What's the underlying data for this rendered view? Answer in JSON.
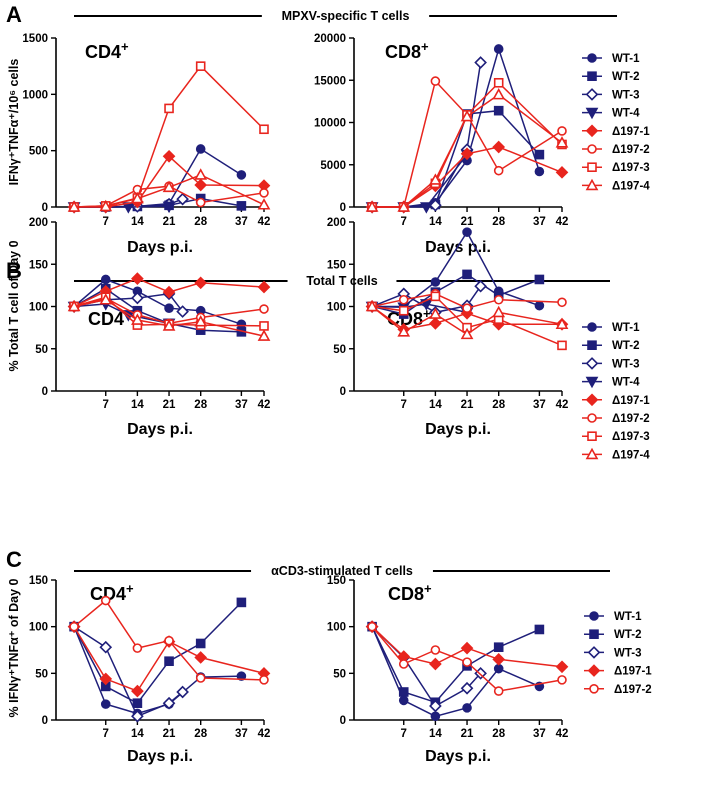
{
  "figure": {
    "panels": [
      {
        "letter": "A",
        "section_title": "MPXV-specific T cells",
        "ylabel": "IFNγ⁺TNFα⁺/10⁶ cells"
      },
      {
        "letter": "B",
        "section_title": "Total T cells",
        "ylabel": "% Total T cell of Day 0"
      },
      {
        "letter": "C",
        "section_title": "αCD3-stimulated T cells",
        "ylabel": "% IFNγ⁺TNFα⁺ of Day 0"
      }
    ]
  },
  "series_styles": [
    {
      "name": "WT-1",
      "color": "#1f1f7a",
      "marker": "circle",
      "filled": true
    },
    {
      "name": "WT-2",
      "color": "#1f1f7a",
      "marker": "square",
      "filled": true
    },
    {
      "name": "WT-3",
      "color": "#1f1f7a",
      "marker": "diamond",
      "filled": false
    },
    {
      "name": "WT-4",
      "color": "#1f1f7a",
      "marker": "triangle-down",
      "filled": true
    },
    {
      "name": "Δ197-1",
      "color": "#e8251e",
      "marker": "diamond",
      "filled": true
    },
    {
      "name": "Δ197-2",
      "color": "#e8251e",
      "marker": "circle",
      "filled": false
    },
    {
      "name": "Δ197-3",
      "color": "#e8251e",
      "marker": "square",
      "filled": false
    },
    {
      "name": "Δ197-4",
      "color": "#e8251e",
      "marker": "triangle-up",
      "filled": false
    }
  ],
  "chart_data": [
    {
      "type": "line",
      "panel": "A",
      "title": "CD4+",
      "xlabel": "Days p.i.",
      "ylabel": "IFNγ⁺TNFα⁺/10⁶ cells",
      "xlim": [
        -4,
        42
      ],
      "xticks": [
        7,
        14,
        21,
        28,
        37,
        42
      ],
      "ylim": [
        0,
        1500
      ],
      "yticks": [
        0,
        500,
        1000,
        1500
      ],
      "series": [
        {
          "name": "WT-1",
          "x": [
            0,
            7,
            14,
            21,
            28,
            37
          ],
          "y": [
            0,
            2,
            5,
            30,
            515,
            285
          ]
        },
        {
          "name": "WT-2",
          "x": [
            0,
            7,
            14,
            21,
            28,
            37
          ],
          "y": [
            0,
            0,
            5,
            15,
            75,
            10
          ]
        },
        {
          "name": "WT-3",
          "x": [
            0,
            7,
            14,
            21,
            24
          ],
          "y": [
            0,
            0,
            5,
            25,
            70
          ]
        },
        {
          "name": "WT-4",
          "x": [
            0,
            7,
            12,
            21
          ],
          "y": [
            0,
            0,
            0,
            5
          ]
        },
        {
          "name": "Δ197-1",
          "x": [
            0,
            7,
            14,
            21,
            28,
            42
          ],
          "y": [
            0,
            0,
            45,
            450,
            195,
            190
          ]
        },
        {
          "name": "Δ197-2",
          "x": [
            0,
            7,
            14,
            21,
            28,
            42
          ],
          "y": [
            0,
            10,
            155,
            185,
            40,
            125
          ]
        },
        {
          "name": "Δ197-3",
          "x": [
            0,
            7,
            14,
            21,
            28,
            42
          ],
          "y": [
            0,
            10,
            80,
            875,
            1250,
            690
          ]
        },
        {
          "name": "Δ197-4",
          "x": [
            0,
            7,
            14,
            21,
            28,
            42
          ],
          "y": [
            0,
            5,
            75,
            175,
            285,
            20
          ]
        }
      ]
    },
    {
      "type": "line",
      "panel": "A",
      "title": "CD8+",
      "xlabel": "Days p.i.",
      "ylabel": "",
      "xlim": [
        -4,
        42
      ],
      "xticks": [
        7,
        14,
        21,
        28,
        37,
        42
      ],
      "ylim": [
        0,
        20000
      ],
      "yticks": [
        0,
        5000,
        10000,
        15000,
        20000
      ],
      "series": [
        {
          "name": "WT-1",
          "x": [
            0,
            7,
            14,
            21,
            28,
            37
          ],
          "y": [
            0,
            0,
            500,
            5500,
            18700,
            4200
          ]
        },
        {
          "name": "WT-2",
          "x": [
            0,
            7,
            14,
            21,
            28,
            37
          ],
          "y": [
            0,
            0,
            300,
            11000,
            11400,
            6200
          ]
        },
        {
          "name": "WT-3",
          "x": [
            0,
            7,
            14,
            21,
            24
          ],
          "y": [
            0,
            0,
            200,
            6800,
            17100
          ]
        },
        {
          "name": "WT-4",
          "x": [
            0,
            7,
            12,
            21
          ],
          "y": [
            0,
            0,
            0,
            6200
          ]
        },
        {
          "name": "Δ197-1",
          "x": [
            0,
            7,
            14,
            21,
            28,
            42
          ],
          "y": [
            0,
            0,
            2500,
            6300,
            7100,
            4100
          ]
        },
        {
          "name": "Δ197-2",
          "x": [
            0,
            7,
            14,
            21,
            28,
            42
          ],
          "y": [
            0,
            0,
            14900,
            10900,
            4300,
            9000
          ]
        },
        {
          "name": "Δ197-3",
          "x": [
            0,
            7,
            14,
            21,
            28,
            42
          ],
          "y": [
            0,
            0,
            2800,
            10900,
            14700,
            7400
          ]
        },
        {
          "name": "Δ197-4",
          "x": [
            0,
            7,
            14,
            21,
            28,
            42
          ],
          "y": [
            0,
            0,
            3200,
            10700,
            13300,
            7600
          ]
        }
      ]
    },
    {
      "type": "line",
      "panel": "B",
      "title": "CD4+",
      "xlabel": "Days p.i.",
      "ylabel": "% Total T cell of Day 0",
      "xlim": [
        -4,
        42
      ],
      "xticks": [
        7,
        14,
        21,
        28,
        37,
        42
      ],
      "ylim": [
        0,
        200
      ],
      "yticks": [
        0,
        50,
        100,
        150,
        200
      ],
      "series": [
        {
          "name": "WT-1",
          "x": [
            0,
            7,
            14,
            21,
            28,
            37
          ],
          "y": [
            100,
            132,
            118,
            98,
            95,
            79
          ]
        },
        {
          "name": "WT-2",
          "x": [
            0,
            7,
            14,
            21,
            28,
            37
          ],
          "y": [
            100,
            121,
            95,
            80,
            72,
            70
          ]
        },
        {
          "name": "WT-3",
          "x": [
            0,
            7,
            14,
            21,
            24
          ],
          "y": [
            100,
            108,
            110,
            115,
            94
          ]
        },
        {
          "name": "WT-4",
          "x": [
            0,
            7,
            12,
            21
          ],
          "y": [
            100,
            103,
            90,
            80
          ]
        },
        {
          "name": "Δ197-1",
          "x": [
            0,
            7,
            14,
            21,
            28,
            42
          ],
          "y": [
            100,
            118,
            133,
            117,
            128,
            123
          ]
        },
        {
          "name": "Δ197-2",
          "x": [
            0,
            7,
            14,
            21,
            28,
            42
          ],
          "y": [
            100,
            110,
            90,
            80,
            87,
            97
          ]
        },
        {
          "name": "Δ197-3",
          "x": [
            0,
            7,
            14,
            21,
            28,
            42
          ],
          "y": [
            100,
            111,
            78,
            79,
            78,
            77
          ]
        },
        {
          "name": "Δ197-4",
          "x": [
            0,
            7,
            14,
            21,
            28,
            42
          ],
          "y": [
            100,
            108,
            84,
            77,
            82,
            65
          ]
        }
      ]
    },
    {
      "type": "line",
      "panel": "B",
      "title": "CD8+",
      "xlabel": "Days p.i.",
      "ylabel": "",
      "xlim": [
        -4,
        42
      ],
      "xticks": [
        7,
        14,
        21,
        28,
        37,
        42
      ],
      "ylim": [
        0,
        200
      ],
      "yticks": [
        0,
        50,
        100,
        150,
        200
      ],
      "series": [
        {
          "name": "WT-1",
          "x": [
            0,
            7,
            14,
            21,
            28,
            37
          ],
          "y": [
            100,
            100,
            129,
            188,
            118,
            101
          ]
        },
        {
          "name": "WT-2",
          "x": [
            0,
            7,
            14,
            21,
            28,
            37
          ],
          "y": [
            100,
            91,
            117,
            138,
            113,
            132
          ]
        },
        {
          "name": "WT-3",
          "x": [
            0,
            7,
            14,
            21,
            24
          ],
          "y": [
            100,
            115,
            93,
            101,
            124
          ]
        },
        {
          "name": "WT-4",
          "x": [
            0,
            7,
            12,
            21
          ],
          "y": [
            100,
            99,
            103,
            93
          ]
        },
        {
          "name": "Δ197-1",
          "x": [
            0,
            7,
            14,
            21,
            28,
            42
          ],
          "y": [
            100,
            73,
            80,
            92,
            79,
            79
          ]
        },
        {
          "name": "Δ197-2",
          "x": [
            0,
            7,
            14,
            21,
            28,
            42
          ],
          "y": [
            100,
            108,
            115,
            98,
            108,
            105
          ]
        },
        {
          "name": "Δ197-3",
          "x": [
            0,
            7,
            14,
            21,
            28,
            42
          ],
          "y": [
            100,
            95,
            112,
            75,
            85,
            54
          ]
        },
        {
          "name": "Δ197-4",
          "x": [
            0,
            7,
            14,
            21,
            28,
            42
          ],
          "y": [
            100,
            70,
            91,
            67,
            93,
            79
          ]
        }
      ]
    },
    {
      "type": "line",
      "panel": "C",
      "title": "CD4+",
      "xlabel": "Days p.i.",
      "ylabel": "% IFNγ⁺TNFα⁺ of Day 0",
      "xlim": [
        -4,
        42
      ],
      "xticks": [
        7,
        14,
        21,
        28,
        37,
        42
      ],
      "ylim": [
        0,
        150
      ],
      "yticks": [
        0,
        50,
        100,
        150
      ],
      "series": [
        {
          "name": "WT-1",
          "x": [
            0,
            7,
            14,
            21,
            28,
            37
          ],
          "y": [
            100,
            17,
            7,
            17,
            46,
            47
          ]
        },
        {
          "name": "WT-2",
          "x": [
            0,
            7,
            14,
            21,
            28,
            37
          ],
          "y": [
            100,
            36,
            18,
            63,
            82,
            126
          ]
        },
        {
          "name": "WT-3",
          "x": [
            0,
            7,
            14,
            21,
            24
          ],
          "y": [
            100,
            78,
            4,
            18,
            30
          ]
        },
        {
          "name": "Δ197-1",
          "x": [
            0,
            7,
            14,
            21,
            28,
            42
          ],
          "y": [
            100,
            44,
            31,
            84,
            67,
            50
          ]
        },
        {
          "name": "Δ197-2",
          "x": [
            0,
            7,
            14,
            21,
            28,
            42
          ],
          "y": [
            100,
            128,
            77,
            85,
            45,
            43
          ]
        }
      ]
    },
    {
      "type": "line",
      "panel": "C",
      "title": "CD8+",
      "xlabel": "Days p.i.",
      "ylabel": "",
      "xlim": [
        -4,
        42
      ],
      "xticks": [
        7,
        14,
        21,
        28,
        37,
        42
      ],
      "ylim": [
        0,
        150
      ],
      "yticks": [
        0,
        50,
        100,
        150
      ],
      "series": [
        {
          "name": "WT-1",
          "x": [
            0,
            7,
            14,
            21,
            28,
            37
          ],
          "y": [
            100,
            21,
            4,
            13,
            55,
            36
          ]
        },
        {
          "name": "WT-2",
          "x": [
            0,
            7,
            14,
            21,
            28,
            37
          ],
          "y": [
            100,
            30,
            19,
            58,
            78,
            97
          ]
        },
        {
          "name": "WT-3",
          "x": [
            0,
            7,
            14,
            21,
            24
          ],
          "y": [
            100,
            67,
            15,
            34,
            50
          ]
        },
        {
          "name": "Δ197-1",
          "x": [
            0,
            7,
            14,
            21,
            28,
            42
          ],
          "y": [
            100,
            68,
            60,
            77,
            65,
            57
          ]
        },
        {
          "name": "Δ197-2",
          "x": [
            0,
            7,
            14,
            21,
            28,
            42
          ],
          "y": [
            100,
            60,
            75,
            62,
            31,
            43
          ]
        }
      ]
    }
  ],
  "legends": [
    {
      "panel": "A",
      "names": [
        "WT-1",
        "WT-2",
        "WT-3",
        "WT-4",
        "Δ197-1",
        "Δ197-2",
        "Δ197-3",
        "Δ197-4"
      ]
    },
    {
      "panel": "B",
      "names": [
        "WT-1",
        "WT-2",
        "WT-3",
        "WT-4",
        "Δ197-1",
        "Δ197-2",
        "Δ197-3",
        "Δ197-4"
      ]
    },
    {
      "panel": "C",
      "names": [
        "WT-1",
        "WT-2",
        "WT-3",
        "Δ197-1",
        "Δ197-2"
      ]
    }
  ]
}
